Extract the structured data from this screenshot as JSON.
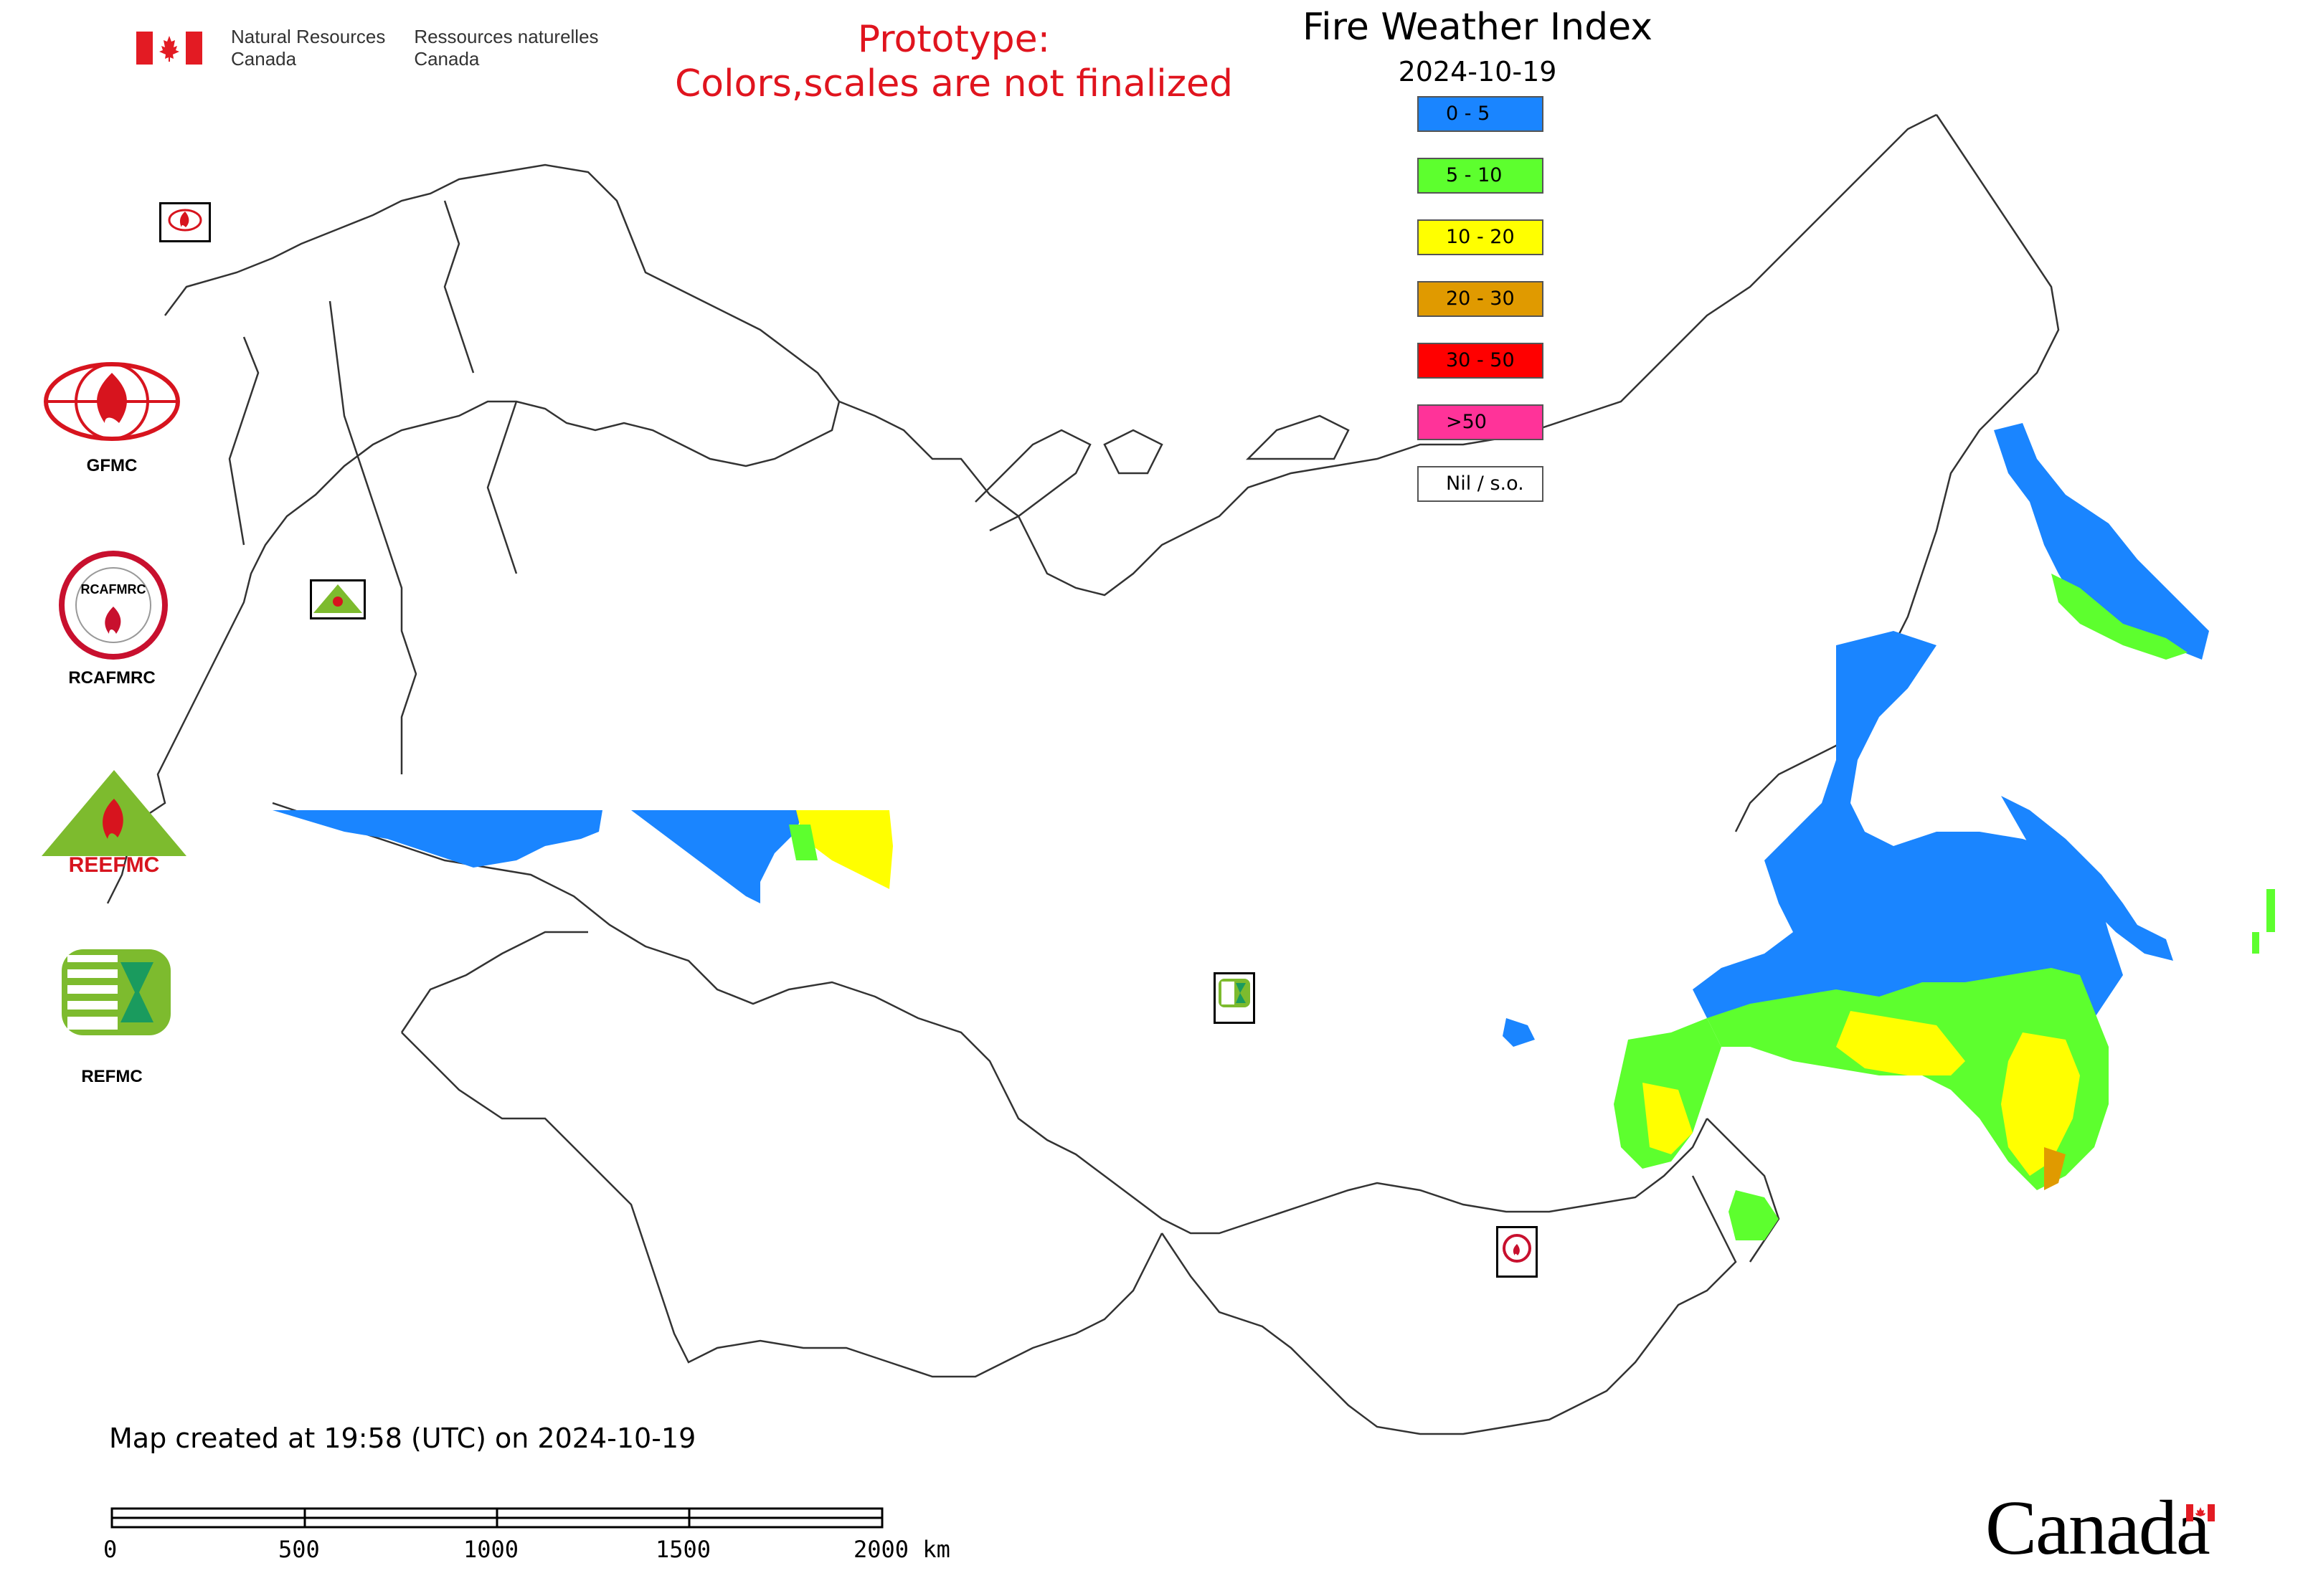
{
  "header": {
    "gov_en": "Natural Resources\nCanada",
    "gov_fr": "Ressources naturelles\nCanada"
  },
  "prototype_notice": {
    "line1": "Prototype:",
    "line2": "Colors,scales are not finalized",
    "color": "#e0141e"
  },
  "title": "Fire Weather Index",
  "date": "2024-10-19",
  "legend": [
    {
      "label": "0 - 5",
      "color": "#1a85ff"
    },
    {
      "label": "5 - 10",
      "color": "#5dff2e"
    },
    {
      "label": "10 - 20",
      "color": "#ffff00"
    },
    {
      "label": "20 - 30",
      "color": "#e09a00"
    },
    {
      "label": "30 - 50",
      "color": "#ff0000"
    },
    {
      "label": ">50",
      "color": "#ff3399"
    },
    {
      "label": "Nil / s.o.",
      "color": "#ffffff"
    }
  ],
  "side_logos": [
    {
      "name": "gfmc-logo",
      "label": "GFMC"
    },
    {
      "name": "rcafmrc-logo",
      "label": "RCAFMRC"
    },
    {
      "name": "reefmc-logo",
      "label": "REEFMC"
    },
    {
      "name": "refmc-logo",
      "label": "REFMC"
    }
  ],
  "map_markers": [
    {
      "name": "gfmc-marker",
      "label": "GFMC"
    },
    {
      "name": "reefmc-marker",
      "label": "REEFMC"
    },
    {
      "name": "refmc-marker",
      "label": "REFMC"
    },
    {
      "name": "rcafmrc-marker",
      "label": "RCAFMRC"
    }
  ],
  "footer": {
    "created": "Map created at 19:58 (UTC) on 2024-10-19",
    "scale_ticks": [
      "0",
      "500",
      "1000",
      "1500",
      "2000 km"
    ],
    "wordmark": "Canada"
  }
}
